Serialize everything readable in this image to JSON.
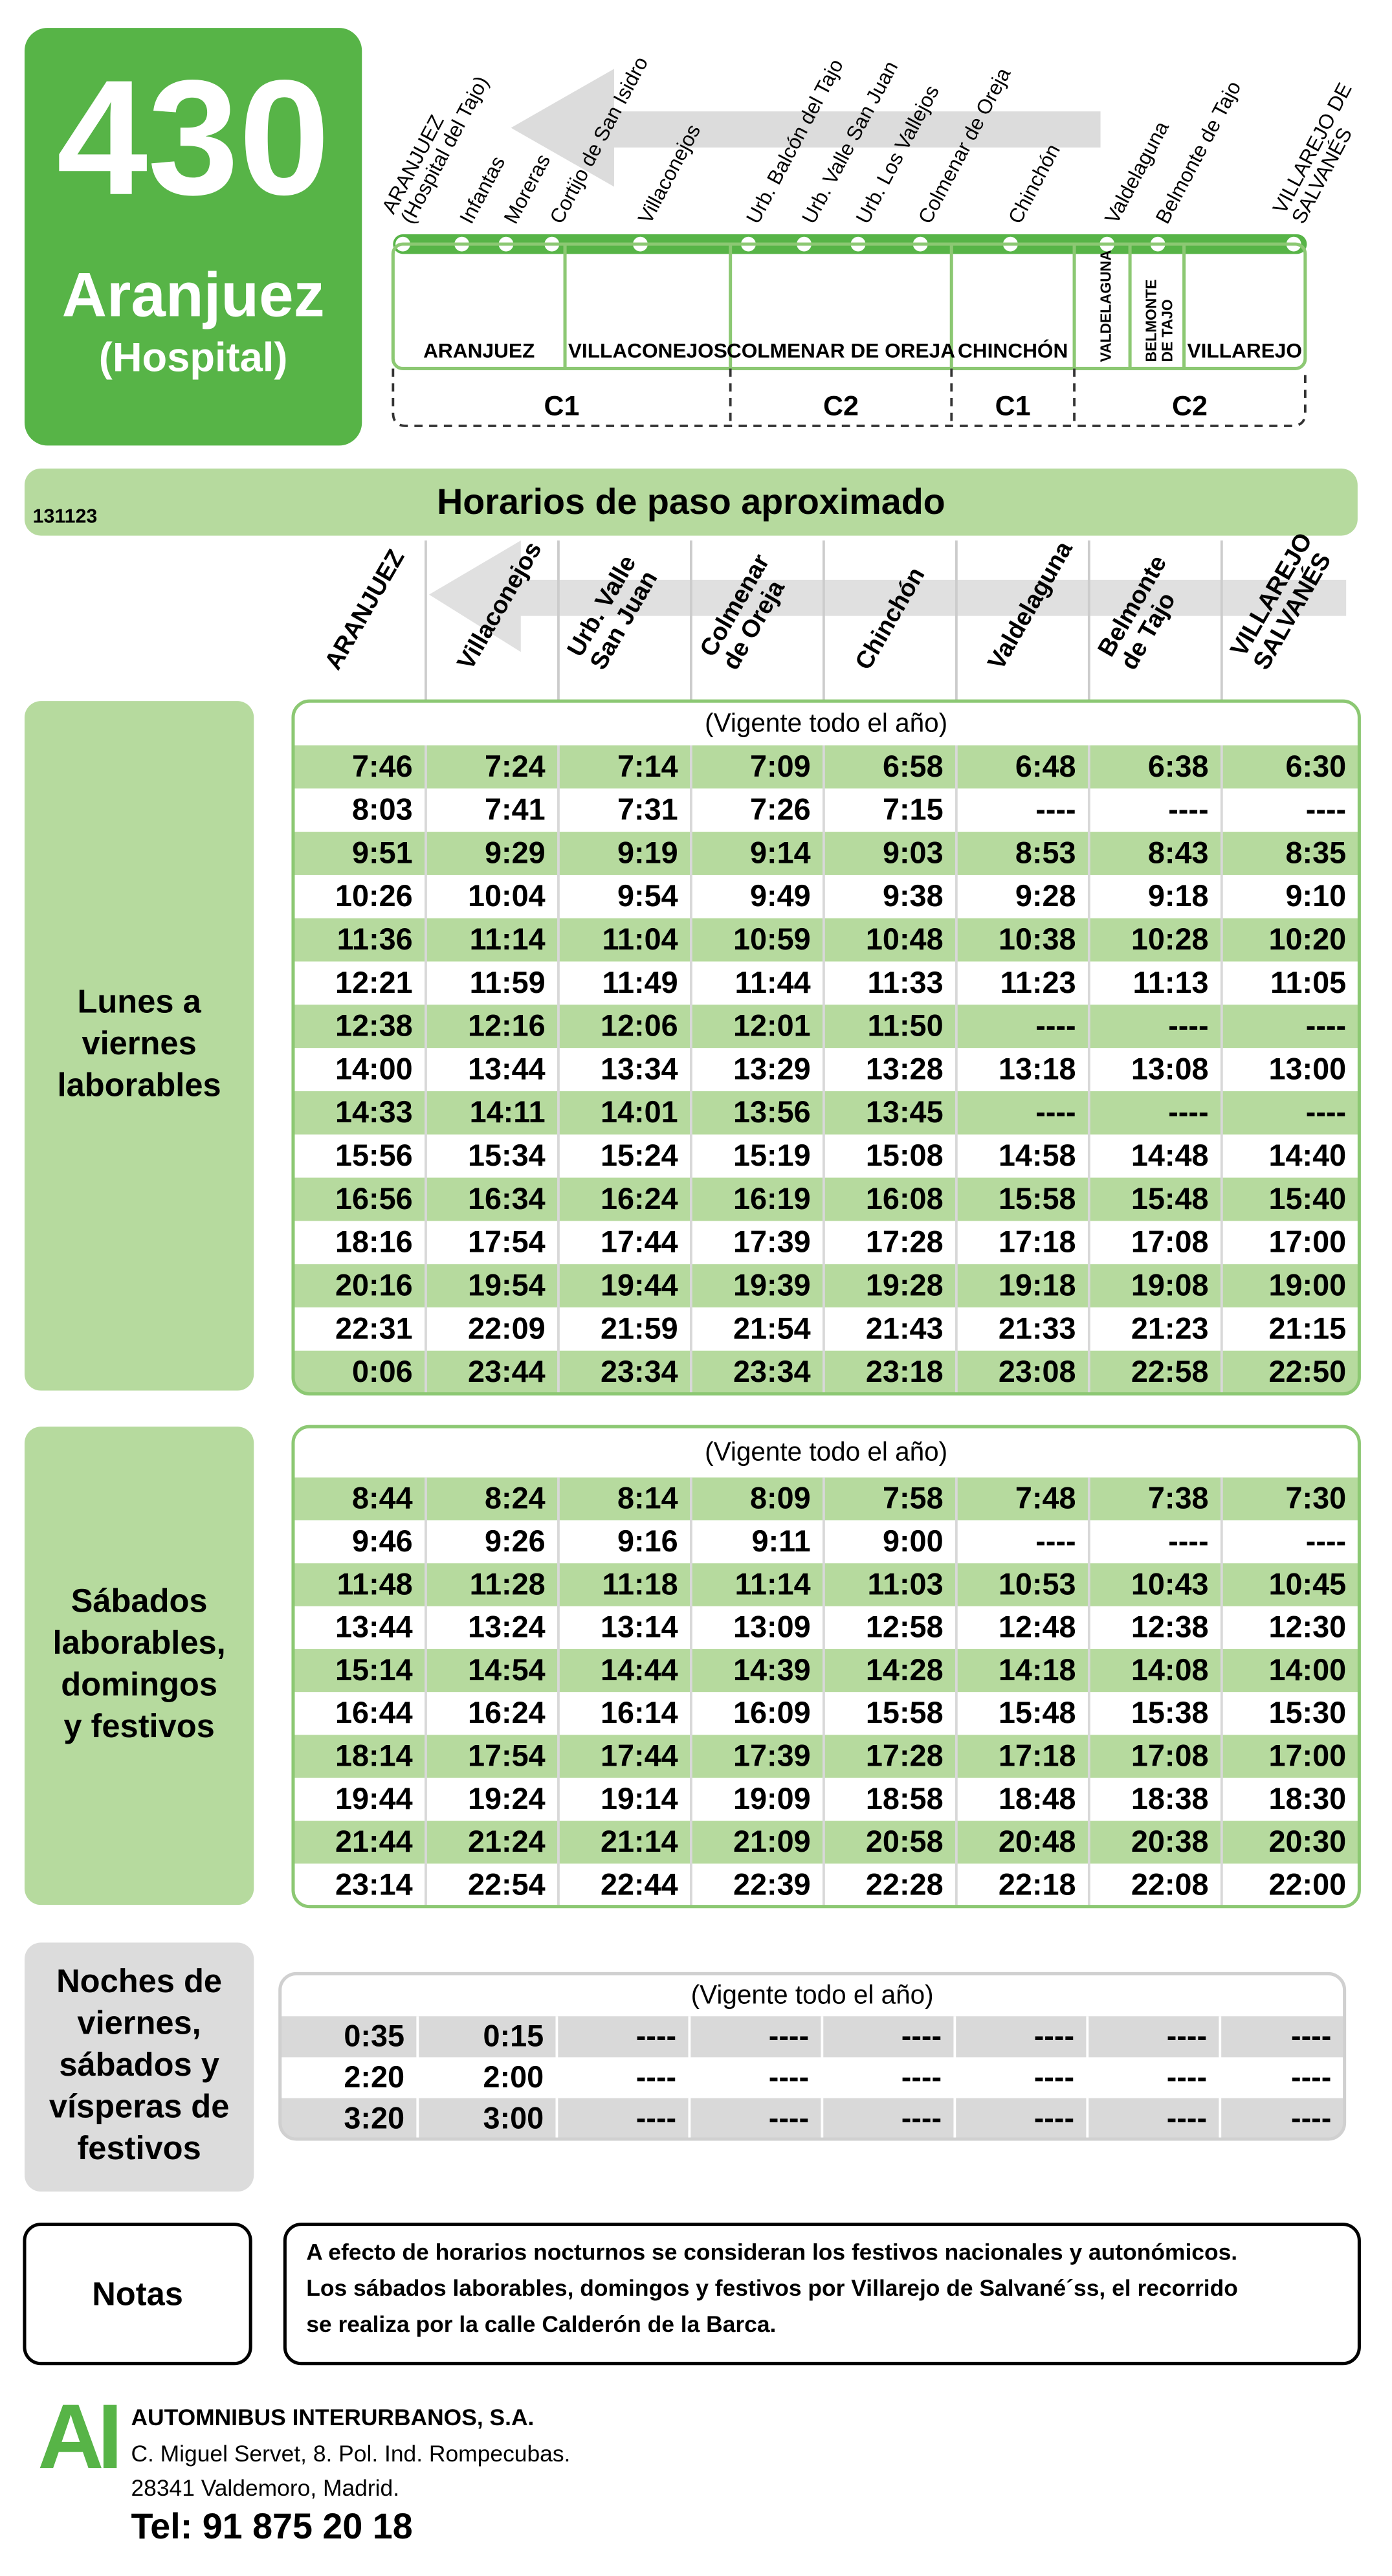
{
  "header": {
    "route": "430",
    "destination": "Aranjuez",
    "destination_sub": "(Hospital)"
  },
  "map": {
    "stops": [
      [
        "ARANJUEZ",
        "(Hospital del Tajo)"
      ],
      [
        "Infantas"
      ],
      [
        "Moreras"
      ],
      [
        "Cortijo de San Isidro"
      ],
      [
        "Villaconejos"
      ],
      [
        "Urb. Balcón del Tajo"
      ],
      [
        "Urb. Valle San Juan"
      ],
      [
        "Urb. Los Vallejos"
      ],
      [
        "Colmenar de Oreja"
      ],
      [
        "Chinchón"
      ],
      [
        "Valdelaguna"
      ],
      [
        "Belmonte de Tajo"
      ],
      [
        "VILLAREJO DE",
        "SALVANÉS"
      ]
    ],
    "towns": [
      [
        "ARANJUEZ"
      ],
      [
        "VILLACONEJOS"
      ],
      [
        "COLMENAR DE OREJA"
      ],
      [
        "CHINCHÓN"
      ],
      [
        "VALDELAGUNA"
      ],
      [
        "BELMONTE",
        "DE TAJO"
      ],
      [
        "VILLAREJO"
      ]
    ],
    "zones": [
      "C1",
      "C2",
      "C1",
      "C2"
    ]
  },
  "timetable": {
    "code": "131123",
    "title": "Horarios de paso aproximado",
    "columns": [
      [
        "ARANJUEZ"
      ],
      [
        "Villaconejos"
      ],
      [
        "Urb. Valle",
        "San Juan"
      ],
      [
        "Colmenar",
        "de Oreja"
      ],
      [
        "Chinchón"
      ],
      [
        "Valdelaguna"
      ],
      [
        "Belmonte",
        "de Tajo"
      ],
      [
        "VILLAREJO",
        "SALVANÉS"
      ]
    ],
    "sections": [
      {
        "label": [
          "Lunes a",
          "viernes",
          "laborables"
        ],
        "validity": "(Vigente todo el año)",
        "rows": [
          [
            "7:46",
            "7:24",
            "7:14",
            "7:09",
            "6:58",
            "6:48",
            "6:38",
            "6:30"
          ],
          [
            "8:03",
            "7:41",
            "7:31",
            "7:26",
            "7:15",
            "----",
            "----",
            "----"
          ],
          [
            "9:51",
            "9:29",
            "9:19",
            "9:14",
            "9:03",
            "8:53",
            "8:43",
            "8:35"
          ],
          [
            "10:26",
            "10:04",
            "9:54",
            "9:49",
            "9:38",
            "9:28",
            "9:18",
            "9:10"
          ],
          [
            "11:36",
            "11:14",
            "11:04",
            "10:59",
            "10:48",
            "10:38",
            "10:28",
            "10:20"
          ],
          [
            "12:21",
            "11:59",
            "11:49",
            "11:44",
            "11:33",
            "11:23",
            "11:13",
            "11:05"
          ],
          [
            "12:38",
            "12:16",
            "12:06",
            "12:01",
            "11:50",
            "----",
            "----",
            "----"
          ],
          [
            "14:00",
            "13:44",
            "13:34",
            "13:29",
            "13:28",
            "13:18",
            "13:08",
            "13:00"
          ],
          [
            "14:33",
            "14:11",
            "14:01",
            "13:56",
            "13:45",
            "----",
            "----",
            "----"
          ],
          [
            "15:56",
            "15:34",
            "15:24",
            "15:19",
            "15:08",
            "14:58",
            "14:48",
            "14:40"
          ],
          [
            "16:56",
            "16:34",
            "16:24",
            "16:19",
            "16:08",
            "15:58",
            "15:48",
            "15:40"
          ],
          [
            "18:16",
            "17:54",
            "17:44",
            "17:39",
            "17:28",
            "17:18",
            "17:08",
            "17:00"
          ],
          [
            "20:16",
            "19:54",
            "19:44",
            "19:39",
            "19:28",
            "19:18",
            "19:08",
            "19:00"
          ],
          [
            "22:31",
            "22:09",
            "21:59",
            "21:54",
            "21:43",
            "21:33",
            "21:23",
            "21:15"
          ],
          [
            "0:06",
            "23:44",
            "23:34",
            "23:34",
            "23:18",
            "23:08",
            "22:58",
            "22:50"
          ]
        ]
      },
      {
        "label": [
          "Sábados",
          "laborables,",
          "domingos",
          "y festivos"
        ],
        "validity": "(Vigente todo el año)",
        "rows": [
          [
            "8:44",
            "8:24",
            "8:14",
            "8:09",
            "7:58",
            "7:48",
            "7:38",
            "7:30"
          ],
          [
            "9:46",
            "9:26",
            "9:16",
            "9:11",
            "9:00",
            "----",
            "----",
            "----"
          ],
          [
            "11:48",
            "11:28",
            "11:18",
            "11:14",
            "11:03",
            "10:53",
            "10:43",
            "10:45"
          ],
          [
            "13:44",
            "13:24",
            "13:14",
            "13:09",
            "12:58",
            "12:48",
            "12:38",
            "12:30"
          ],
          [
            "15:14",
            "14:54",
            "14:44",
            "14:39",
            "14:28",
            "14:18",
            "14:08",
            "14:00"
          ],
          [
            "16:44",
            "16:24",
            "16:14",
            "16:09",
            "15:58",
            "15:48",
            "15:38",
            "15:30"
          ],
          [
            "18:14",
            "17:54",
            "17:44",
            "17:39",
            "17:28",
            "17:18",
            "17:08",
            "17:00"
          ],
          [
            "19:44",
            "19:24",
            "19:14",
            "19:09",
            "18:58",
            "18:48",
            "18:38",
            "18:30"
          ],
          [
            "21:44",
            "21:24",
            "21:14",
            "21:09",
            "20:58",
            "20:48",
            "20:38",
            "20:30"
          ],
          [
            "23:14",
            "22:54",
            "22:44",
            "22:39",
            "22:28",
            "22:18",
            "22:08",
            "22:00"
          ]
        ]
      },
      {
        "label": [
          "Noches de",
          "viernes,",
          "sábados y",
          "vísperas de",
          "festivos"
        ],
        "validity": "(Vigente todo el año)",
        "rows": [
          [
            "0:35",
            "0:15",
            "----",
            "----",
            "----",
            "----",
            "----",
            "----"
          ],
          [
            "2:20",
            "2:00",
            "----",
            "----",
            "----",
            "----",
            "----",
            "----"
          ],
          [
            "3:20",
            "3:00",
            "----",
            "----",
            "----",
            "----",
            "----",
            "----"
          ]
        ]
      }
    ]
  },
  "notes": {
    "label": "Notas",
    "lines": [
      "A efecto de horarios nocturnos se consideran los festivos nacionales y autonómicos.",
      "Los sábados laborables, domingos y festivos por Villarejo de Salvané´ss, el recorrido",
      "se realiza por la calle Calderón de la Barca."
    ]
  },
  "footer": {
    "logo": "AI",
    "company": "AUTOMNIBUS INTERURBANOS, S.A.",
    "address": [
      "C. Miguel Servet, 8.  Pol. Ind. Rompecubas.",
      "28341 Valdemoro, Madrid."
    ],
    "phone": "Tel: 91 875 20 18"
  }
}
